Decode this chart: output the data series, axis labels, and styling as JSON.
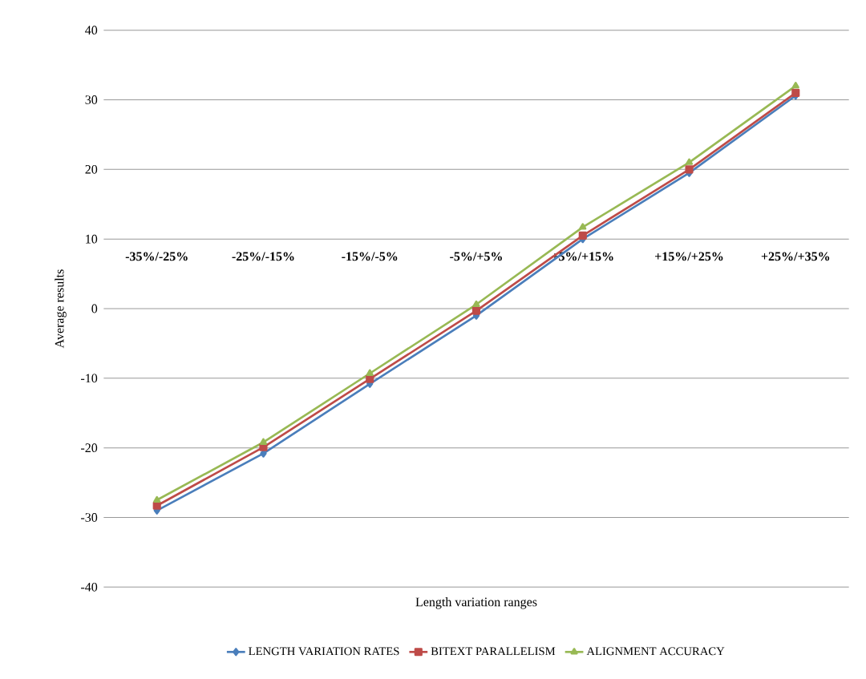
{
  "chart_data": {
    "type": "line",
    "xlabel": "Length variation ranges",
    "ylabel": "Average results",
    "categories": [
      "-35%/-25%",
      "-25%/-15%",
      "-15%/-5%",
      "-5%/+5%",
      "+5%/+15%",
      "+15%/+25%",
      "+25%/+35%"
    ],
    "series": [
      {
        "name": "LENGTH VARIATION RATES",
        "color": "#4a7ebb",
        "marker": "diamond",
        "values": [
          -29,
          -20.8,
          -10.8,
          -1,
          10,
          19.5,
          30.6
        ]
      },
      {
        "name": "BITEXT PARALLELISM",
        "color": "#be4b48",
        "marker": "square",
        "values": [
          -28.3,
          -19.9,
          -10.1,
          -0.3,
          10.5,
          20,
          31
        ]
      },
      {
        "name": "ALIGNMENT ACCURACY",
        "color": "#98b954",
        "marker": "triangle",
        "values": [
          -27.5,
          -19.2,
          -9.3,
          0.6,
          11.7,
          21,
          32
        ]
      }
    ],
    "ylim": [
      -40,
      40
    ],
    "yticks": [
      -40,
      -30,
      -20,
      -10,
      0,
      10,
      20,
      30,
      40
    ],
    "grid": "y",
    "legend": "bottom",
    "line_style": "solid"
  }
}
